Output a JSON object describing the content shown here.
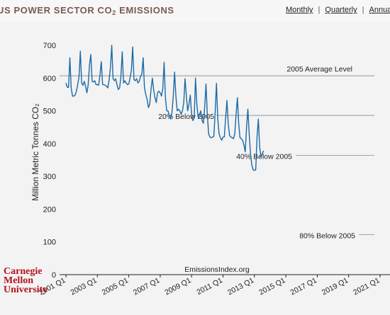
{
  "header": {
    "title_prefix": "US POWER SECTOR CO",
    "title_sub": "2",
    "title_suffix": " EMISSIONS",
    "nav": [
      "Monthly",
      "Quarterly",
      "Annual"
    ]
  },
  "logo": {
    "lines": [
      "Carnegie",
      "Mellon",
      "University"
    ],
    "color": "#b4121b"
  },
  "source": "EmissionsIndex.org",
  "chart_data": {
    "type": "line",
    "ylabel": "Million Metric Tonnes CO₂",
    "ylim": [
      0,
      700
    ],
    "yticks": [
      0,
      100,
      200,
      300,
      400,
      500,
      600,
      700
    ],
    "xticks": [
      "2001 Q1",
      "2003 Q1",
      "2005 Q1",
      "2007 Q1",
      "2009 Q1",
      "2011 Q1",
      "2013 Q1",
      "2015 Q1",
      "2017 Q1",
      "2019 Q1",
      "2021 Q1"
    ],
    "x_start": "2001-01",
    "color": "#1c6aa5",
    "reference_lines": [
      {
        "label": "2005 Average Level",
        "value": 607
      },
      {
        "label": "20% Below 2005",
        "value": 486
      },
      {
        "label": "40% Below 2005",
        "value": 364
      },
      {
        "label": "80% Below 2005",
        "value": 122
      }
    ],
    "series": [
      {
        "values": [
          585,
          572,
          572,
          662,
          570,
          545,
          545,
          548,
          560,
          580,
          605,
          682,
          585,
          578,
          590,
          575,
          555,
          580,
          640,
          672,
          590,
          588,
          592,
          580,
          580,
          578,
          610,
          650,
          580,
          580,
          578,
          575,
          570,
          595,
          632,
          700,
          598,
          592,
          598,
          580,
          565,
          570,
          605,
          680,
          585,
          592,
          585,
          580,
          582,
          600,
          625,
          695,
          595,
          592,
          598,
          585,
          590,
          605,
          612,
          662,
          570,
          550,
          535,
          510,
          520,
          565,
          600,
          565,
          540,
          525,
          555,
          560,
          555,
          545,
          568,
          648,
          540,
          500,
          500,
          485,
          475,
          495,
          545,
          618,
          545,
          500,
          505,
          500,
          490,
          500,
          525,
          598,
          545,
          500,
          520,
          548,
          490,
          470,
          480,
          600,
          520,
          480,
          488,
          500,
          470,
          462,
          510,
          582,
          490,
          430,
          420,
          418,
          420,
          422,
          495,
          584,
          475,
          430,
          418,
          410,
          420,
          420,
          478,
          532,
          460,
          425,
          420,
          418,
          415,
          430,
          490,
          540,
          460,
          418,
          415,
          410,
          395,
          375,
          450,
          505,
          430,
          370,
          335,
          320,
          318,
          320,
          420,
          475,
          390,
          358,
          370,
          378
        ]
      }
    ]
  }
}
